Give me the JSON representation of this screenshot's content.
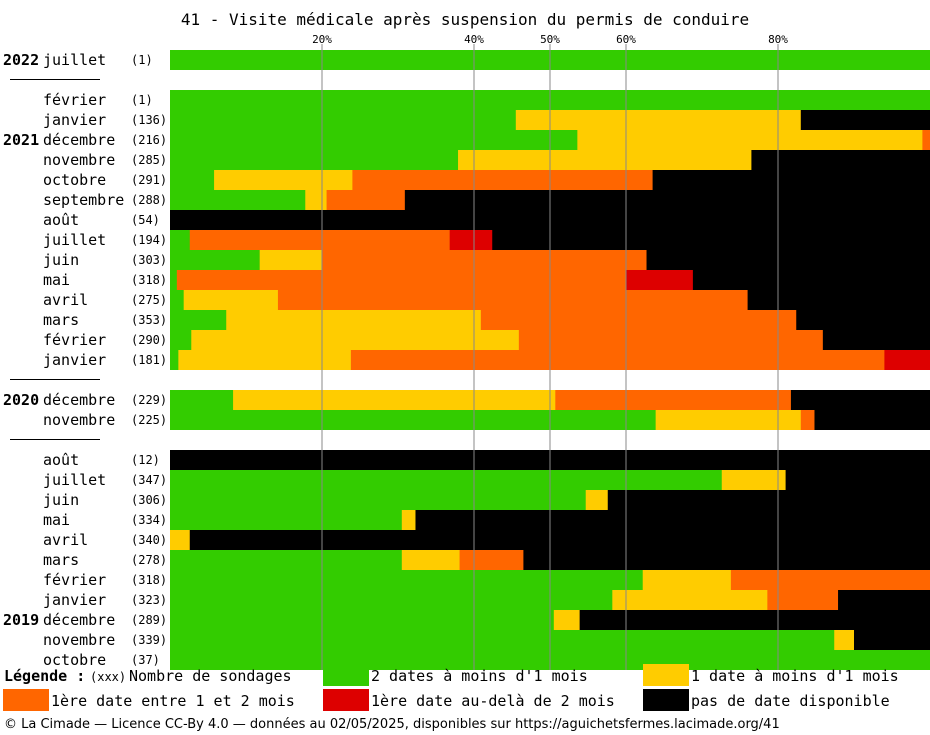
{
  "chart_data": {
    "type": "bar",
    "orientation": "horizontal",
    "stacked": true,
    "title": "41 - Visite médicale après suspension du permis de conduire",
    "x_ticks": [
      {
        "value": 20,
        "label": "20%"
      },
      {
        "value": 40,
        "label": "40%"
      },
      {
        "value": 50,
        "label": "50%"
      },
      {
        "value": 60,
        "label": "60%"
      },
      {
        "value": 80,
        "label": "80%"
      }
    ],
    "xlim": [
      0,
      100
    ],
    "grid": "vertical",
    "legend_position": "bottom",
    "series": [
      {
        "key": "g",
        "name": "2 dates à moins d'1 mois",
        "color": "#33cc00"
      },
      {
        "key": "y",
        "name": "1 date à moins d'1 mois",
        "color": "#ffcc00"
      },
      {
        "key": "o",
        "name": "1ère date entre 1 et 2 mois",
        "color": "#ff6600"
      },
      {
        "key": "r",
        "name": "1ère date au-delà de 2 mois",
        "color": "#dd0000"
      },
      {
        "key": "b",
        "name": "pas de date disponible",
        "color": "#000000"
      }
    ],
    "groups": [
      {
        "year": "2022",
        "rows": [
          {
            "month": "juillet",
            "count": "(1)",
            "values": [
              100,
              0,
              0,
              0,
              0
            ]
          }
        ]
      },
      {
        "year": "2021",
        "rows": [
          {
            "month": "février",
            "count": "(1)",
            "values": [
              100,
              0,
              0,
              0,
              0
            ]
          },
          {
            "month": "janvier",
            "count": "(136)",
            "values": [
              45.5,
              37.5,
              0,
              0,
              17
            ]
          },
          {
            "month": "décembre",
            "count": "(216)",
            "values": [
              53.6,
              45.4,
              1,
              0,
              0
            ]
          },
          {
            "month": "novembre",
            "count": "(285)",
            "values": [
              37.9,
              38.6,
              0,
              0,
              23.5
            ]
          },
          {
            "month": "octobre",
            "count": "(291)",
            "values": [
              5.8,
              18.2,
              39.5,
              0,
              36.5
            ]
          },
          {
            "month": "septembre",
            "count": "(288)",
            "values": [
              17.8,
              2.8,
              10.3,
              0,
              69.1
            ]
          },
          {
            "month": "août",
            "count": "(54)",
            "values": [
              0,
              0,
              0,
              0,
              100
            ]
          },
          {
            "month": "juillet",
            "count": "(194)",
            "values": [
              2.6,
              0,
              34.2,
              5.6,
              57.6
            ]
          },
          {
            "month": "juin",
            "count": "(303)",
            "values": [
              11.8,
              8.2,
              42.7,
              0,
              37.3
            ]
          },
          {
            "month": "mai",
            "count": "(318)",
            "values": [
              0.9,
              0,
              59.1,
              8.8,
              31.2
            ]
          },
          {
            "month": "avril",
            "count": "(275)",
            "values": [
              1.8,
              12.4,
              61.8,
              0,
              24
            ]
          },
          {
            "month": "mars",
            "count": "(353)",
            "values": [
              7.4,
              33.5,
              41.5,
              0,
              17.6
            ]
          },
          {
            "month": "février",
            "count": "(290)",
            "values": [
              2.8,
              43.1,
              40,
              0,
              14.1
            ]
          },
          {
            "month": "janvier",
            "count": "(181)",
            "values": [
              1.1,
              22.7,
              70.2,
              6,
              0
            ]
          }
        ]
      },
      {
        "year": "2020",
        "rows": [
          {
            "month": "décembre",
            "count": "(229)",
            "values": [
              8.3,
              42.4,
              31,
              0,
              18.3
            ]
          },
          {
            "month": "novembre",
            "count": "(225)",
            "values": [
              63.9,
              19.1,
              1.8,
              0,
              15.2
            ]
          }
        ]
      },
      {
        "year": "2019",
        "rows": [
          {
            "month": "août",
            "count": "(12)",
            "values": [
              0,
              0,
              0,
              0,
              100
            ]
          },
          {
            "month": "juillet",
            "count": "(347)",
            "values": [
              72.6,
              8.4,
              0,
              0,
              19
            ]
          },
          {
            "month": "juin",
            "count": "(306)",
            "values": [
              54.7,
              2.9,
              0,
              0,
              42.4
            ]
          },
          {
            "month": "mai",
            "count": "(334)",
            "values": [
              30.5,
              1.8,
              0,
              0,
              67.7
            ]
          },
          {
            "month": "avril",
            "count": "(340)",
            "values": [
              0,
              2.6,
              0,
              0,
              97.4
            ]
          },
          {
            "month": "mars",
            "count": "(278)",
            "values": [
              30.5,
              7.6,
              8.4,
              0,
              53.5
            ]
          },
          {
            "month": "février",
            "count": "(318)",
            "values": [
              62.2,
              11.6,
              26.2,
              0,
              0
            ]
          },
          {
            "month": "janvier",
            "count": "(323)",
            "values": [
              58.2,
              20.4,
              9.3,
              0,
              12.1
            ]
          },
          {
            "month": "décembre",
            "count": "(289)",
            "values": [
              50.5,
              3.4,
              0,
              0,
              46.1
            ]
          },
          {
            "month": "novembre",
            "count": "(339)",
            "values": [
              87.4,
              2.6,
              0,
              0,
              10
            ]
          },
          {
            "month": "octobre",
            "count": "(37)",
            "values": [
              100,
              0,
              0,
              0,
              0
            ]
          }
        ]
      }
    ]
  },
  "legend": {
    "title": "Légende :",
    "count_marker": "(xxx)",
    "count_desc": "Nombre de sondages"
  },
  "footer": "© La Cimade — Licence CC-By 4.0 — données au 02/05/2025, disponibles sur https://aguichetsfermes.lacimade.org/41"
}
